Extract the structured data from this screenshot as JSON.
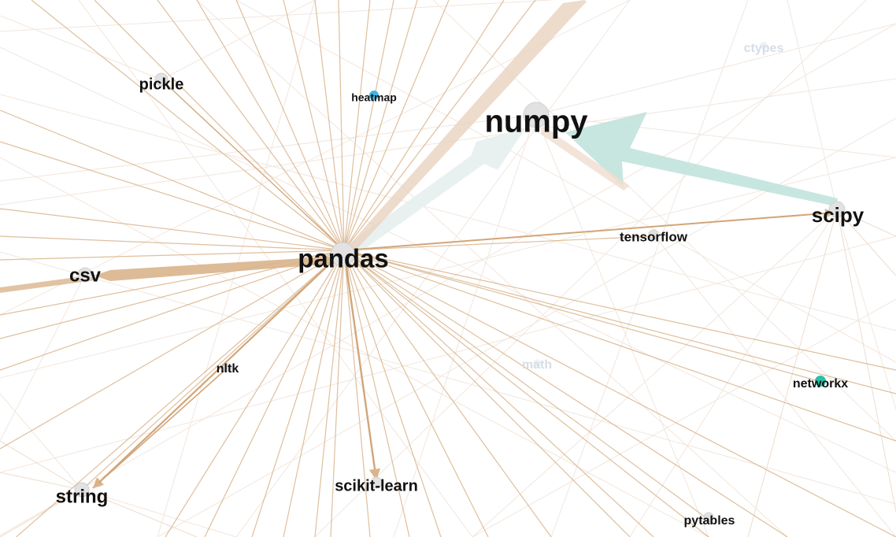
{
  "graph": {
    "nodes": [
      {
        "id": "numpy",
        "label": "numpy",
        "size": "xl",
        "color": "#cfcfcf"
      },
      {
        "id": "pandas",
        "label": "pandas",
        "size": "lg",
        "color": "#cfcfcf"
      },
      {
        "id": "scipy",
        "label": "scipy",
        "size": "md",
        "color": "#cfcfcf"
      },
      {
        "id": "csv",
        "label": "csv",
        "size": "md",
        "color": "#cfcfcf"
      },
      {
        "id": "string",
        "label": "string",
        "size": "md",
        "color": "#cfcfcf"
      },
      {
        "id": "pickle",
        "label": "pickle",
        "size": "sm",
        "color": "#cfcfcf"
      },
      {
        "id": "tensorflow",
        "label": "tensorflow",
        "size": "sm",
        "color": "#cfcfcf"
      },
      {
        "id": "scikit-learn",
        "label": "scikit-learn",
        "size": "sm",
        "color": "#cfcfcf"
      },
      {
        "id": "nltk",
        "label": "nltk",
        "size": "xs",
        "color": "#cfcfcf"
      },
      {
        "id": "heatmap",
        "label": "heatmap",
        "size": "xs",
        "color": "#3bb8e6"
      },
      {
        "id": "networkx",
        "label": "networkx",
        "size": "xs",
        "color": "#27c2a8"
      },
      {
        "id": "pytables",
        "label": "pytables",
        "size": "xs",
        "color": "#cfcfcf"
      },
      {
        "id": "ctypes",
        "label": "ctypes",
        "size": "xs",
        "color": "#dde3ea",
        "faded": true
      },
      {
        "id": "math",
        "label": "math",
        "size": "xs",
        "color": "#dde3ea",
        "faded": true
      }
    ],
    "edges": [
      {
        "from": "pandas",
        "to": "numpy",
        "weight": 5,
        "color": "#e8efef"
      },
      {
        "from": "scipy",
        "to": "numpy",
        "weight": 6,
        "color": "#bfe3dc"
      },
      {
        "from": "pandas",
        "to": "csv",
        "weight": 3,
        "color": "#d9b48c"
      },
      {
        "from": "pandas",
        "to": "scipy",
        "weight": 2,
        "color": "#d9b48c"
      },
      {
        "from": "pandas",
        "to": "scikit-learn",
        "weight": 2,
        "color": "#d9b48c"
      },
      {
        "from": "pandas",
        "to": "string",
        "weight": 2,
        "color": "#d9b48c"
      },
      {
        "from": "pandas",
        "to": "pickle",
        "weight": 1,
        "color": "#d9b48c"
      },
      {
        "from": "pandas",
        "to": "pytables",
        "weight": 1,
        "color": "#d9b48c"
      },
      {
        "from": "pandas",
        "to": "networkx",
        "weight": 1,
        "color": "#d9b48c"
      },
      {
        "from": "pandas",
        "to": "tensorflow",
        "weight": 1,
        "color": "#d9b48c"
      },
      {
        "from": "pandas",
        "to": "heatmap",
        "weight": 1,
        "color": "#d9b48c"
      },
      {
        "from": "nltk",
        "to": "string",
        "weight": 1,
        "color": "#d9b48c"
      },
      {
        "from": "numpy",
        "to": "tensorflow",
        "weight": 1,
        "color": "#f0ddd0"
      }
    ]
  }
}
